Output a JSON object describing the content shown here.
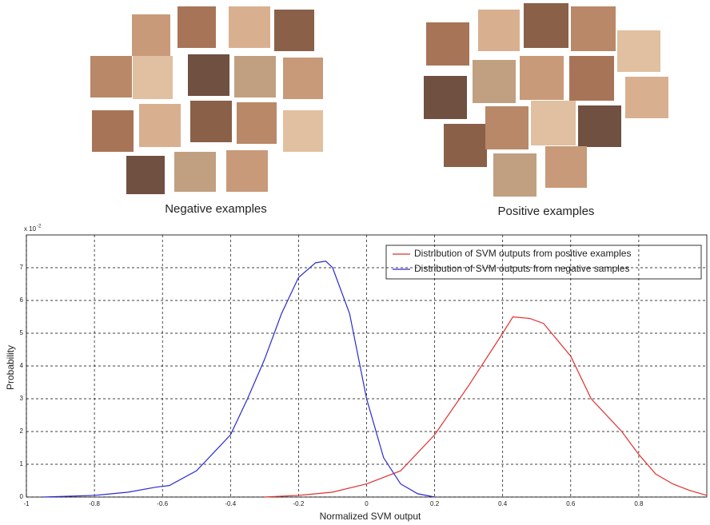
{
  "chart_data": {
    "type": "line",
    "captions": [
      "Negative examples",
      "Positive examples"
    ],
    "xlabel": "Normalized SVM output",
    "ylabel": "Probability",
    "y_scale_label": "x 10",
    "y_scale_exponent": "-2",
    "xlim": [
      -1,
      1
    ],
    "xticks": [
      -1,
      -0.8,
      -0.6,
      -0.4,
      -0.2,
      0,
      0.2,
      0.4,
      0.6,
      0.8
    ],
    "ylim": [
      0,
      8
    ],
    "yticks": [
      0,
      1,
      2,
      3,
      4,
      5,
      6,
      7
    ],
    "grid": true,
    "legend": "upper right",
    "series": [
      {
        "name": "Distribution of SVM outputs from positive examples",
        "color": "#e03030",
        "x": [
          -0.3,
          -0.2,
          -0.1,
          0,
          0.1,
          0.2,
          0.3,
          0.4,
          0.43,
          0.48,
          0.52,
          0.6,
          0.66,
          0.75,
          0.8,
          0.85,
          0.9,
          0.95,
          1.0
        ],
        "values": [
          0,
          0.05,
          0.15,
          0.4,
          0.8,
          1.9,
          3.4,
          5.0,
          5.5,
          5.45,
          5.3,
          4.3,
          3.0,
          2.0,
          1.3,
          0.7,
          0.4,
          0.2,
          0.05
        ]
      },
      {
        "name": "Distribution of SVM outputs from negative samples",
        "color": "#2a2ad0",
        "x": [
          -0.95,
          -0.8,
          -0.7,
          -0.62,
          -0.58,
          -0.5,
          -0.4,
          -0.35,
          -0.3,
          -0.25,
          -0.2,
          -0.15,
          -0.12,
          -0.1,
          -0.05,
          0,
          0.05,
          0.1,
          0.15,
          0.2
        ],
        "values": [
          0,
          0.05,
          0.15,
          0.3,
          0.35,
          0.8,
          1.9,
          3.0,
          4.2,
          5.6,
          6.7,
          7.15,
          7.2,
          7.0,
          5.6,
          3.0,
          1.2,
          0.4,
          0.1,
          0
        ]
      }
    ]
  }
}
